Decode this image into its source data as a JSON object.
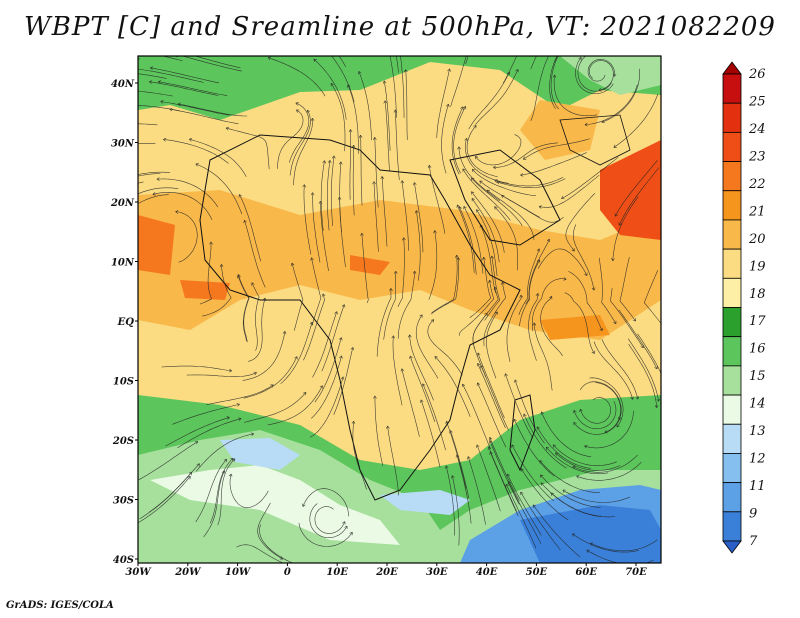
{
  "title": "WBPT [C] and Sreamline at 500hPa, VT: 2021082209",
  "footer": "GrADS: IGES/COLA",
  "map": {
    "lat_labels": [
      "40N",
      "30N",
      "20N",
      "10N",
      "EQ",
      "10S",
      "20S",
      "30S",
      "40S"
    ],
    "lon_labels": [
      "30W",
      "20W",
      "10W",
      "0",
      "10E",
      "20E",
      "30E",
      "40E",
      "50E",
      "60E",
      "70E"
    ]
  },
  "colorbar": {
    "levels": [
      "26",
      "25",
      "24",
      "23",
      "22",
      "21",
      "20",
      "19",
      "18",
      "17",
      "16",
      "15",
      "14",
      "13",
      "12",
      "11",
      "9",
      "7"
    ],
    "colors": [
      "#a50000",
      "#c80f0f",
      "#e3310f",
      "#ef4f16",
      "#f6781e",
      "#f6951e",
      "#f8b84a",
      "#fbdc83",
      "#fdf0a6",
      "#2ca02c",
      "#5cc55c",
      "#a6e09c",
      "#eafae4",
      "#b8dcf5",
      "#84bff0",
      "#5ca0e6",
      "#3a80d8",
      "#2a5fc8"
    ]
  }
}
